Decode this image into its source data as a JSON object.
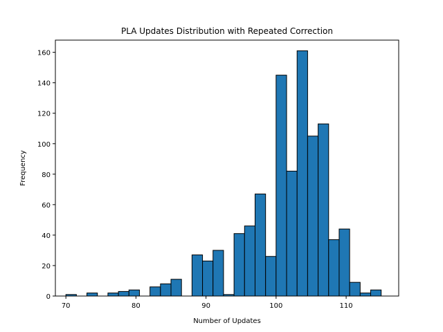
{
  "chart_data": {
    "type": "bar",
    "title": "PLA Updates Distribution with Repeated Correction",
    "xlabel": "Number of Updates",
    "ylabel": "Frequency",
    "xlim": [
      68.5,
      117.5
    ],
    "ylim": [
      0,
      168
    ],
    "grid": false,
    "legend": "none",
    "bar_color": "#1f77b4",
    "edge_color": "#000000",
    "xticks": [
      70,
      80,
      90,
      100,
      110
    ],
    "yticks": [
      0,
      20,
      40,
      60,
      80,
      100,
      120,
      140,
      160
    ],
    "bins": [
      {
        "start": 70.0,
        "end": 71.5,
        "value": 1
      },
      {
        "start": 71.5,
        "end": 73.0,
        "value": 0
      },
      {
        "start": 73.0,
        "end": 74.5,
        "value": 2
      },
      {
        "start": 74.5,
        "end": 76.0,
        "value": 0
      },
      {
        "start": 76.0,
        "end": 77.5,
        "value": 2
      },
      {
        "start": 77.5,
        "end": 79.0,
        "value": 3
      },
      {
        "start": 79.0,
        "end": 80.5,
        "value": 4
      },
      {
        "start": 80.5,
        "end": 82.0,
        "value": 0
      },
      {
        "start": 82.0,
        "end": 83.5,
        "value": 6
      },
      {
        "start": 83.5,
        "end": 85.0,
        "value": 8
      },
      {
        "start": 85.0,
        "end": 86.5,
        "value": 11
      },
      {
        "start": 86.5,
        "end": 88.0,
        "value": 0
      },
      {
        "start": 88.0,
        "end": 89.5,
        "value": 27
      },
      {
        "start": 89.5,
        "end": 91.0,
        "value": 23
      },
      {
        "start": 91.0,
        "end": 92.5,
        "value": 30
      },
      {
        "start": 92.5,
        "end": 94.0,
        "value": 1
      },
      {
        "start": 94.0,
        "end": 95.5,
        "value": 41
      },
      {
        "start": 95.5,
        "end": 97.0,
        "value": 46
      },
      {
        "start": 97.0,
        "end": 98.5,
        "value": 67
      },
      {
        "start": 98.5,
        "end": 100.0,
        "value": 26
      },
      {
        "start": 100.0,
        "end": 101.5,
        "value": 145
      },
      {
        "start": 101.5,
        "end": 103.0,
        "value": 82
      },
      {
        "start": 103.0,
        "end": 104.5,
        "value": 161
      },
      {
        "start": 104.5,
        "end": 106.0,
        "value": 105
      },
      {
        "start": 106.0,
        "end": 107.5,
        "value": 113
      },
      {
        "start": 107.5,
        "end": 109.0,
        "value": 37
      },
      {
        "start": 109.0,
        "end": 110.5,
        "value": 44
      },
      {
        "start": 110.5,
        "end": 112.0,
        "value": 9
      },
      {
        "start": 112.0,
        "end": 113.5,
        "value": 2
      },
      {
        "start": 113.5,
        "end": 115.0,
        "value": 4
      }
    ]
  }
}
